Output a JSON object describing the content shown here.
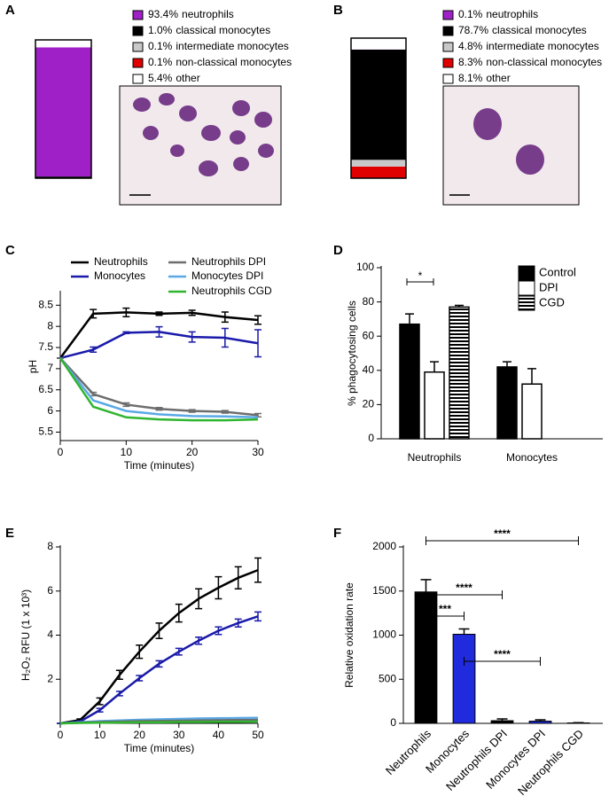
{
  "chart_data": [
    {
      "type": "stacked_bar",
      "label": "A",
      "categories": [
        "neutrophils",
        "classical monocytes",
        "intermediate monocytes",
        "non-classical monocytes",
        "other"
      ],
      "values": [
        93.4,
        1.0,
        0.1,
        0.1,
        5.4
      ],
      "value_labels": [
        "93.4%",
        "1.0%",
        "0.1%",
        "0.1%",
        "5.4%"
      ],
      "colors": [
        "#a020c8",
        "#000000",
        "#c8c8c8",
        "#e00000",
        "#ffffff"
      ]
    },
    {
      "type": "stacked_bar",
      "label": "B",
      "categories": [
        "neutrophils",
        "classical monocytes",
        "intermediate monocytes",
        "non-classical monocytes",
        "other"
      ],
      "values": [
        0.1,
        78.7,
        4.8,
        8.3,
        8.1
      ],
      "value_labels": [
        "0.1%",
        "78.7%",
        "4.8%",
        "8.3%",
        "8.1%"
      ],
      "colors": [
        "#a020c8",
        "#000000",
        "#c8c8c8",
        "#e00000",
        "#ffffff"
      ]
    },
    {
      "type": "line",
      "label": "C",
      "x_label": "Time (minutes)",
      "y_label": "pH",
      "x": [
        0,
        5,
        10,
        15,
        20,
        25,
        30
      ],
      "xlim": [
        0,
        30
      ],
      "xticks": [
        0,
        10,
        20,
        30
      ],
      "ylim": [
        5.3,
        8.8
      ],
      "yticks": [
        5.5,
        6,
        6.5,
        7,
        7.5,
        8,
        8.5
      ],
      "series": [
        {
          "name": "Neutrophils",
          "color": "#000000",
          "values": [
            7.25,
            8.3,
            8.33,
            8.3,
            8.32,
            8.22,
            8.15
          ],
          "errors": [
            0,
            0.1,
            0.1,
            0.04,
            0.06,
            0.12,
            0.1
          ]
        },
        {
          "name": "Monocytes",
          "color": "#1a1aaa",
          "values": [
            7.25,
            7.45,
            7.85,
            7.87,
            7.75,
            7.73,
            7.6
          ],
          "errors": [
            0,
            0.06,
            0.02,
            0.12,
            0.12,
            0.22,
            0.32
          ]
        },
        {
          "name": "Neutrophils DPI",
          "color": "#6d6d6d",
          "values": [
            7.25,
            6.4,
            6.15,
            6.05,
            6.0,
            5.98,
            5.9
          ],
          "errors": [
            0,
            0.04,
            0.04,
            0.03,
            0.03,
            0.03,
            0.04
          ]
        },
        {
          "name": "Monocytes DPI",
          "color": "#5aa9e6",
          "values": [
            7.25,
            6.25,
            6.0,
            5.92,
            5.88,
            5.87,
            5.85
          ]
        },
        {
          "name": "Neutrophils CGD",
          "color": "#2fb52f",
          "values": [
            7.25,
            6.1,
            5.85,
            5.8,
            5.78,
            5.78,
            5.8
          ]
        }
      ]
    },
    {
      "type": "grouped_bar",
      "label": "D",
      "y_label": "% phagocytosing cells",
      "categories": [
        "Neutrophils",
        "Monocytes"
      ],
      "ylim": [
        0,
        100
      ],
      "yticks": [
        0,
        20,
        40,
        60,
        80,
        100
      ],
      "series": [
        {
          "name": "Control",
          "color": "#000000",
          "values": [
            67,
            42
          ],
          "errors": [
            6,
            3
          ]
        },
        {
          "name": "DPI",
          "color": "#ffffff",
          "values": [
            39,
            32
          ],
          "errors": [
            6,
            9
          ]
        },
        {
          "name": "CGD",
          "color": "#000000",
          "hatch": true,
          "values": [
            77,
            null
          ],
          "errors": [
            1,
            null
          ]
        }
      ],
      "annotations": [
        "*"
      ]
    },
    {
      "type": "line",
      "label": "E",
      "x_label": "Time (minutes)",
      "y_label": "H₂O₂ RFU (1 x 10³)",
      "x": [
        0,
        5,
        10,
        15,
        20,
        25,
        30,
        35,
        40,
        45,
        50
      ],
      "xlim": [
        0,
        50
      ],
      "xticks": [
        0,
        10,
        20,
        30,
        40,
        50
      ],
      "ylim": [
        0,
        8
      ],
      "yticks": [
        2,
        4,
        6,
        8
      ],
      "series": [
        {
          "color": "#000000",
          "values": [
            0,
            0.15,
            1.0,
            2.2,
            3.25,
            4.2,
            5.0,
            5.65,
            6.15,
            6.6,
            6.95
          ],
          "errors": [
            0,
            0.05,
            0.15,
            0.2,
            0.3,
            0.35,
            0.4,
            0.45,
            0.5,
            0.5,
            0.55
          ]
        },
        {
          "color": "#1a1aaa",
          "values": [
            0,
            0.08,
            0.6,
            1.35,
            2.05,
            2.7,
            3.25,
            3.75,
            4.2,
            4.55,
            4.85
          ],
          "errors": [
            0,
            0.03,
            0.08,
            0.1,
            0.12,
            0.14,
            0.15,
            0.16,
            0.17,
            0.18,
            0.2
          ]
        },
        {
          "color": "#5aa9e6",
          "values": [
            0,
            0.05,
            0.1,
            0.13,
            0.16,
            0.18,
            0.2,
            0.22,
            0.23,
            0.24,
            0.25
          ]
        },
        {
          "color": "#6d6d6d",
          "values": [
            0,
            0.03,
            0.06,
            0.08,
            0.1,
            0.11,
            0.12,
            0.13,
            0.14,
            0.15,
            0.15
          ]
        },
        {
          "color": "#2fb52f",
          "values": [
            0,
            0.02,
            0.03,
            0.04,
            0.05,
            0.05,
            0.06,
            0.06,
            0.07,
            0.07,
            0.08
          ]
        }
      ]
    },
    {
      "type": "bar",
      "label": "F",
      "y_label": "Relative oxidation rate",
      "categories": [
        "Neutrophils",
        "Monocytes",
        "Neutrophils DPI",
        "Monocytes DPI",
        "Neutrophils CGD"
      ],
      "values": [
        1490,
        1010,
        30,
        25,
        5
      ],
      "errors": [
        140,
        60,
        20,
        15,
        3
      ],
      "colors": [
        "#000000",
        "#1f2bdc",
        "#000000",
        "#1f2bdc",
        "#000000"
      ],
      "ylim": [
        0,
        2000
      ],
      "yticks": [
        0,
        500,
        1000,
        1500,
        2000
      ],
      "annotations": [
        "***",
        "****",
        "****",
        "****"
      ]
    }
  ]
}
